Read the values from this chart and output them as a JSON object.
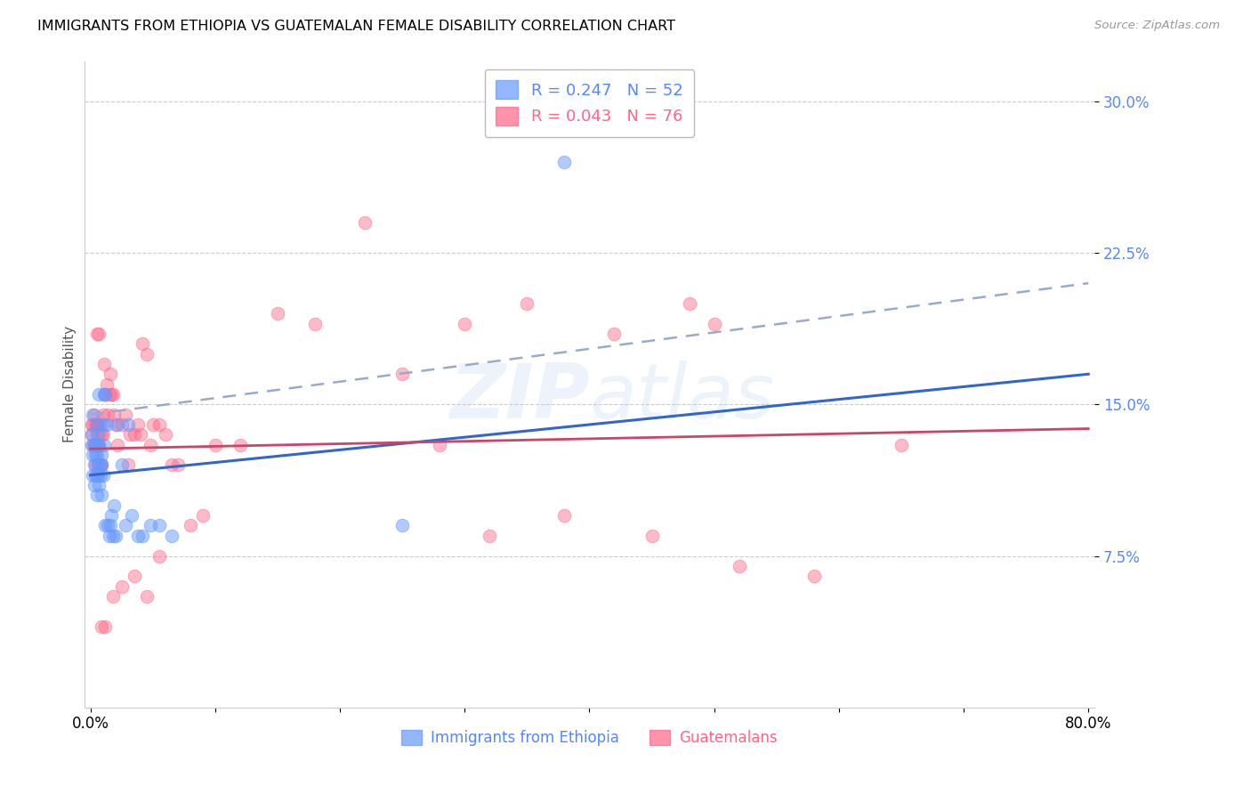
{
  "title": "IMMIGRANTS FROM ETHIOPIA VS GUATEMALAN FEMALE DISABILITY CORRELATION CHART",
  "source": "Source: ZipAtlas.com",
  "ylabel_label": "Female Disability",
  "blue_label": "Immigrants from Ethiopia",
  "pink_label": "Guatemalans",
  "blue_color": "#6699ff",
  "pink_color": "#ff6688",
  "axis_tick_color": "#5588ff",
  "watermark_color": "#aaccee",
  "blue_line_color": "#3366cc",
  "pink_line_color": "#cc4466",
  "dash_line_color": "#99aacc",
  "legend_r1": "R = 0.247",
  "legend_n1": "N = 52",
  "legend_r2": "R = 0.043",
  "legend_n2": "N = 76",
  "xlim": [
    0.0,
    0.8
  ],
  "ylim": [
    0.0,
    0.32
  ],
  "y_ticks": [
    0.075,
    0.15,
    0.225,
    0.3
  ],
  "x_ticks": [
    0.0,
    0.8
  ],
  "blue_scatter_x": [
    0.001,
    0.001,
    0.002,
    0.002,
    0.002,
    0.003,
    0.003,
    0.003,
    0.004,
    0.004,
    0.004,
    0.005,
    0.005,
    0.005,
    0.005,
    0.006,
    0.006,
    0.006,
    0.007,
    0.007,
    0.007,
    0.008,
    0.008,
    0.009,
    0.009,
    0.009,
    0.01,
    0.01,
    0.011,
    0.011,
    0.012,
    0.012,
    0.013,
    0.014,
    0.015,
    0.016,
    0.017,
    0.018,
    0.019,
    0.02,
    0.022,
    0.025,
    0.028,
    0.03,
    0.033,
    0.038,
    0.042,
    0.048,
    0.055,
    0.065,
    0.25,
    0.38
  ],
  "blue_scatter_y": [
    0.135,
    0.13,
    0.145,
    0.125,
    0.115,
    0.12,
    0.11,
    0.13,
    0.115,
    0.125,
    0.13,
    0.125,
    0.14,
    0.105,
    0.135,
    0.115,
    0.12,
    0.13,
    0.13,
    0.11,
    0.155,
    0.12,
    0.115,
    0.125,
    0.105,
    0.12,
    0.115,
    0.14,
    0.13,
    0.155,
    0.155,
    0.09,
    0.14,
    0.09,
    0.085,
    0.09,
    0.095,
    0.085,
    0.1,
    0.085,
    0.14,
    0.12,
    0.09,
    0.14,
    0.095,
    0.085,
    0.085,
    0.09,
    0.09,
    0.085,
    0.09,
    0.27
  ],
  "pink_scatter_x": [
    0.001,
    0.001,
    0.002,
    0.002,
    0.003,
    0.003,
    0.004,
    0.004,
    0.005,
    0.005,
    0.005,
    0.006,
    0.006,
    0.007,
    0.007,
    0.008,
    0.008,
    0.009,
    0.009,
    0.01,
    0.01,
    0.011,
    0.012,
    0.013,
    0.014,
    0.015,
    0.016,
    0.017,
    0.018,
    0.019,
    0.02,
    0.022,
    0.025,
    0.028,
    0.03,
    0.032,
    0.035,
    0.038,
    0.04,
    0.042,
    0.045,
    0.048,
    0.05,
    0.055,
    0.06,
    0.065,
    0.07,
    0.08,
    0.09,
    0.1,
    0.12,
    0.15,
    0.18,
    0.22,
    0.005,
    0.007,
    0.009,
    0.012,
    0.018,
    0.025,
    0.035,
    0.045,
    0.055,
    0.3,
    0.35,
    0.42,
    0.48,
    0.5,
    0.25,
    0.28,
    0.32,
    0.38,
    0.45,
    0.52,
    0.58,
    0.65
  ],
  "pink_scatter_y": [
    0.135,
    0.14,
    0.13,
    0.14,
    0.13,
    0.145,
    0.12,
    0.14,
    0.115,
    0.13,
    0.14,
    0.14,
    0.12,
    0.13,
    0.135,
    0.14,
    0.12,
    0.12,
    0.135,
    0.135,
    0.145,
    0.17,
    0.155,
    0.16,
    0.145,
    0.155,
    0.165,
    0.155,
    0.155,
    0.145,
    0.14,
    0.13,
    0.14,
    0.145,
    0.12,
    0.135,
    0.135,
    0.14,
    0.135,
    0.18,
    0.175,
    0.13,
    0.14,
    0.14,
    0.135,
    0.12,
    0.12,
    0.09,
    0.095,
    0.13,
    0.13,
    0.195,
    0.19,
    0.24,
    0.185,
    0.185,
    0.04,
    0.04,
    0.055,
    0.06,
    0.065,
    0.055,
    0.075,
    0.19,
    0.2,
    0.185,
    0.2,
    0.19,
    0.165,
    0.13,
    0.085,
    0.095,
    0.085,
    0.07,
    0.065,
    0.13
  ],
  "blue_trend_x0": 0.0,
  "blue_trend_x1": 0.8,
  "blue_trend_y0": 0.115,
  "blue_trend_y1": 0.165,
  "pink_trend_x0": 0.0,
  "pink_trend_x1": 0.8,
  "pink_trend_y0": 0.128,
  "pink_trend_y1": 0.138,
  "dash_trend_x0": 0.0,
  "dash_trend_x1": 0.8,
  "dash_trend_y0": 0.145,
  "dash_trend_y1": 0.21
}
